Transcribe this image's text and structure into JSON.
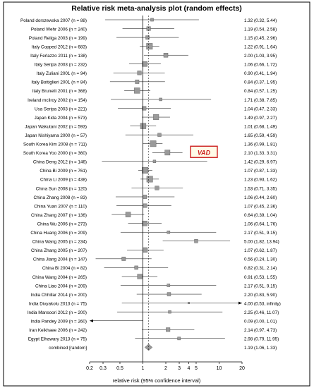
{
  "chart_data": {
    "type": "forest",
    "title": "Relative risk meta-analysis plot (random effects)",
    "xlabel": "relative risk (95% confidence interval)",
    "x_scale": "log",
    "xlim": [
      0.2,
      20
    ],
    "x_ticks": [
      "0.2",
      "0.3",
      "0.5",
      "1",
      "2",
      "3",
      "4",
      "5",
      "10",
      "20"
    ],
    "x_tick_values": [
      0.2,
      0.3,
      0.5,
      1,
      2,
      3,
      4,
      5,
      10,
      20
    ],
    "annotation": "VAD",
    "annotation_color": "#cc1f1f",
    "studies": [
      {
        "label": "Poland dorszewska 2007 (n = 88)",
        "rr": 1.32,
        "lo": 0.32,
        "hi": 5.44,
        "ci_text": "1.32 (0.32, 5.44)"
      },
      {
        "label": "Poland Wehr 2006 (n = 240)",
        "rr": 1.19,
        "lo": 0.54,
        "hi": 2.58,
        "ci_text": "1.19 (0.54, 2.58)"
      },
      {
        "label": "Poland Religa 2003 (n = 199)",
        "rr": 1.15,
        "lo": 0.45,
        "hi": 2.96,
        "ci_text": "1.15 (0.45, 2.96)"
      },
      {
        "label": "Italy Copped 2012 (n = 683)",
        "rr": 1.22,
        "lo": 0.91,
        "hi": 1.64,
        "ci_text": "1.22 (0.91, 1.64)"
      },
      {
        "label": "Italy Ferlazzo 2011 (n = 138)",
        "rr": 2.0,
        "lo": 1.03,
        "hi": 3.95,
        "ci_text": "2.00 (1.03, 3.95)"
      },
      {
        "label": "Italy Seripa 2003 (n = 232)",
        "rr": 1.06,
        "lo": 0.66,
        "hi": 1.72,
        "ci_text": "1.06 (0.66, 1.72)"
      },
      {
        "label": "Italy Zuliani 2001 (n = 94)",
        "rr": 0.9,
        "lo": 0.41,
        "hi": 1.94,
        "ci_text": "0.90 (0.41, 1.94)"
      },
      {
        "label": "Italy Bottiglieri 2001 (n = 84)",
        "rr": 0.84,
        "lo": 0.37,
        "hi": 1.95,
        "ci_text": "0.84 (0.37, 1.95)"
      },
      {
        "label": "Italy Brunelli 2001 (n = 368)",
        "rr": 0.84,
        "lo": 0.57,
        "hi": 1.25,
        "ci_text": "0.84 (0.57, 1.25)"
      },
      {
        "label": "Ireland mcilroy 2002 (n = 154)",
        "rr": 1.71,
        "lo": 0.38,
        "hi": 7.85,
        "ci_text": "1.71 (0.38, 7.85)"
      },
      {
        "label": "Usa Seripa 2003 (n = 221)",
        "rr": 1.04,
        "lo": 0.47,
        "hi": 2.33,
        "ci_text": "1.04 (0.47, 2.33)"
      },
      {
        "label": "Japan Kida 2004 (n = 573)",
        "rr": 1.49,
        "lo": 0.97,
        "hi": 2.27,
        "ci_text": "1.49 (0.97, 2.27)"
      },
      {
        "label": "Japan Wakutani 2002 (n = 593)",
        "rr": 1.01,
        "lo": 0.68,
        "hi": 1.49,
        "ci_text": "1.01 (0.68, 1.49)"
      },
      {
        "label": "Japan Nishiyama 2000 (n = 57)",
        "rr": 1.65,
        "lo": 0.59,
        "hi": 4.59,
        "ci_text": "1.65 (0.59, 4.59)"
      },
      {
        "label": "South Korea Kim 2008 (n = 711)",
        "rr": 1.36,
        "lo": 0.99,
        "hi": 1.81,
        "ci_text": "1.36 (0.99, 1.81)"
      },
      {
        "label": "South Korea Yoo 2000 (n = 360)",
        "rr": 2.1,
        "lo": 1.33,
        "hi": 3.31,
        "ci_text": "2.10 (1.33, 3.31)"
      },
      {
        "label": "China Deng 2012 (n = 146)",
        "rr": 1.42,
        "lo": 0.29,
        "hi": 6.97,
        "ci_text": "1.42 (0.29, 6.97)"
      },
      {
        "label": "China Bi 2009 (n = 761)",
        "rr": 1.07,
        "lo": 0.87,
        "hi": 1.33,
        "ci_text": "1.07 (0.87, 1.33)"
      },
      {
        "label": "China Li 2009 (n = 438)",
        "rr": 1.23,
        "lo": 0.93,
        "hi": 1.62,
        "ci_text": "1.23 (0.93, 1.62)"
      },
      {
        "label": "China Sun 2008 (n = 120)",
        "rr": 1.53,
        "lo": 0.71,
        "hi": 3.35,
        "ci_text": "1.53 (0.71, 3.35)"
      },
      {
        "label": "China Zhang 2008 (n = 83)",
        "rr": 1.06,
        "lo": 0.44,
        "hi": 2.6,
        "ci_text": "1.06 (0.44, 2.60)"
      },
      {
        "label": "China Yuan 2007 (n = 110)",
        "rr": 1.07,
        "lo": 0.45,
        "hi": 2.36,
        "ci_text": "1.07 (0.45, 2.36)"
      },
      {
        "label": "China Zhang 2007 (n = 136)",
        "rr": 0.64,
        "lo": 0.39,
        "hi": 1.04,
        "ci_text": "0.64 (0.39, 1.04)"
      },
      {
        "label": "China Wu 2006 (n = 273)",
        "rr": 1.06,
        "lo": 0.64,
        "hi": 1.76,
        "ci_text": "1.06 (0.64, 1.76)"
      },
      {
        "label": "China Huang 2006 (n = 209)",
        "rr": 2.17,
        "lo": 0.51,
        "hi": 9.15,
        "ci_text": "2.17 (0.51, 9.15)"
      },
      {
        "label": "China Wang 2005 (n = 234)",
        "rr": 5.0,
        "lo": 1.82,
        "hi": 13.94,
        "ci_text": "5.00 (1.82, 13.94)"
      },
      {
        "label": "China Zhang 2005 (n = 207)",
        "rr": 1.07,
        "lo": 0.62,
        "hi": 1.87,
        "ci_text": "1.07 (0.62, 1.87)"
      },
      {
        "label": "China Jiang 2004 (n = 147)",
        "rr": 0.56,
        "lo": 0.24,
        "hi": 1.3,
        "ci_text": "0.56 (0.24, 1.30)"
      },
      {
        "label": "China Bi 2004 (n = 82)",
        "rr": 0.82,
        "lo": 0.31,
        "hi": 2.14,
        "ci_text": "0.82 (0.31, 2.14)"
      },
      {
        "label": "China Wang 2004 (n = 265)",
        "rr": 0.91,
        "lo": 0.53,
        "hi": 1.55,
        "ci_text": "0.91 (0.53, 1.55)"
      },
      {
        "label": "China Liao 2004 (n = 209)",
        "rr": 2.17,
        "lo": 0.51,
        "hi": 9.15,
        "ci_text": "2.17 (0.51, 9.15)"
      },
      {
        "label": "India Chhillar 2014 (n = 200)",
        "rr": 2.2,
        "lo": 0.83,
        "hi": 5.9,
        "ci_text": "2.20 (0.83, 5.90)"
      },
      {
        "label": "India Divyakolu 2013 (n = 75)",
        "rr": 4.0,
        "lo": 0.53,
        "hi": null,
        "ci_text": "4.00 (0.53, infinity)"
      },
      {
        "label": "India Mansoori 2012 (n = 200)",
        "rr": 2.25,
        "lo": 0.46,
        "hi": 11.07,
        "ci_text": "2.25 (0.46, 11.07)"
      },
      {
        "label": "India Pandey 2009 (n = 260)",
        "rr": 0.09,
        "lo": 0.0,
        "hi": 1.01,
        "ci_text": "0.09 (0.00, 1.01)"
      },
      {
        "label": "Iran Keikhaee 2006 (n = 242)",
        "rr": 2.14,
        "lo": 0.97,
        "hi": 4.73,
        "ci_text": "2.14 (0.97, 4.73)"
      },
      {
        "label": "Egypt Elhawary 2013 (n = 75)",
        "rr": 2.98,
        "lo": 0.79,
        "hi": 11.95,
        "ci_text": "2.98 (0.79, 11.95)"
      }
    ],
    "combined": {
      "label": "combined [random]",
      "rr": 1.19,
      "lo": 1.06,
      "hi": 1.33,
      "ci_text": "1.19 (1.06, 1.33)"
    }
  }
}
